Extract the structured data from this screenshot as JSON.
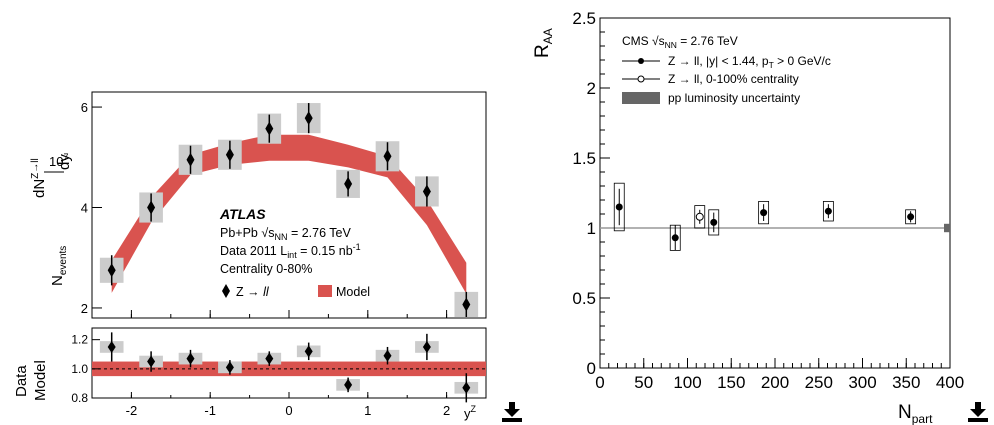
{
  "colors": {
    "model": "#d9534f",
    "syst_box": "#cccccc",
    "lumi": "#666666",
    "ref_line": "#999999"
  },
  "icons": {
    "download_left": "download-icon",
    "download_right": "download-icon"
  },
  "chart_data": [
    {
      "type": "scatter",
      "experiment": "ATLAS",
      "subtitle_lines": [
        "Pb+Pb √s_NN = 2.76 TeV",
        "Data 2011 L_int = 0.15 nb⁻¹",
        "Centrality 0-80%"
      ],
      "legend": {
        "data": "Z → ll",
        "model": "Model"
      },
      "xlabel": "y^Z",
      "ylabel_main": "10^7 / N_events · dN^{Z→ll}/dy",
      "ylabel_ratio": "Data / Model",
      "xlim": [
        -2.5,
        2.5
      ],
      "ylim": [
        1.8,
        6.3
      ],
      "xticks": [
        -2,
        -1,
        0,
        1,
        2
      ],
      "yticks": [
        2,
        4,
        6
      ],
      "x": [
        -2.25,
        -1.75,
        -1.25,
        -0.75,
        -0.25,
        0.25,
        0.75,
        1.25,
        1.75,
        2.25
      ],
      "y": [
        2.75,
        4.0,
        4.95,
        5.05,
        5.57,
        5.78,
        4.47,
        5.02,
        4.32,
        2.07
      ],
      "yerr": [
        0.3,
        0.28,
        0.28,
        0.28,
        0.28,
        0.3,
        0.25,
        0.28,
        0.3,
        0.25
      ],
      "systbox": [
        0.25,
        0.3,
        0.3,
        0.3,
        0.3,
        0.3,
        0.28,
        0.3,
        0.3,
        0.25
      ],
      "model_x": [
        -2.25,
        -1.75,
        -1.25,
        -0.75,
        -0.25,
        0.25,
        0.75,
        1.25,
        1.75,
        2.25
      ],
      "model_low": [
        2.3,
        3.7,
        4.65,
        4.85,
        4.93,
        4.93,
        4.8,
        4.6,
        3.65,
        2.28
      ],
      "model_high": [
        2.95,
        4.2,
        5.05,
        5.28,
        5.45,
        5.45,
        5.25,
        5.02,
        4.15,
        2.9
      ],
      "ratio": {
        "ylim": [
          0.8,
          1.28
        ],
        "yticks": [
          0.8,
          1.0,
          1.2
        ],
        "ytick_labels": [
          "0.8",
          "1.0",
          "1.2"
        ],
        "values": [
          1.15,
          1.05,
          1.07,
          1.01,
          1.07,
          1.12,
          0.89,
          1.09,
          1.15,
          0.87
        ],
        "err": [
          0.1,
          0.07,
          0.06,
          0.05,
          0.05,
          0.06,
          0.05,
          0.06,
          0.09,
          0.1
        ],
        "band": [
          0.95,
          1.05
        ]
      }
    },
    {
      "type": "scatter",
      "ylabel": "R_AA",
      "xlabel": "N_part",
      "xlim": [
        0,
        400
      ],
      "ylim": [
        0,
        2.5
      ],
      "xticks": [
        0,
        50,
        100,
        150,
        200,
        250,
        300,
        350,
        400
      ],
      "yticks": [
        0,
        0.5,
        1,
        1.5,
        2,
        2.5
      ],
      "ytick_labels": [
        "0",
        "0.5",
        "1",
        "1.5",
        "2",
        "2.5"
      ],
      "legend_title": "CMS √s_NN = 2.76 TeV",
      "legend": [
        "Z → ll, |y| < 1.44, p_T > 0 GeV/c",
        "Z → ll, 0-100% centrality",
        "pp luminosity uncertainty"
      ],
      "filled_points": {
        "x": [
          22,
          86,
          130,
          187,
          261,
          355
        ],
        "y": [
          1.15,
          0.93,
          1.04,
          1.11,
          1.12,
          1.08
        ],
        "stat_err": [
          0.13,
          0.09,
          0.07,
          0.06,
          0.05,
          0.04
        ],
        "syst": [
          0.17,
          0.09,
          0.09,
          0.08,
          0.07,
          0.05
        ]
      },
      "open_point": {
        "x": 114,
        "y": 1.08,
        "err": 0.05,
        "syst": 0.08
      },
      "reference_line": 1.0,
      "lumi_uncertainty": 0.03
    }
  ]
}
